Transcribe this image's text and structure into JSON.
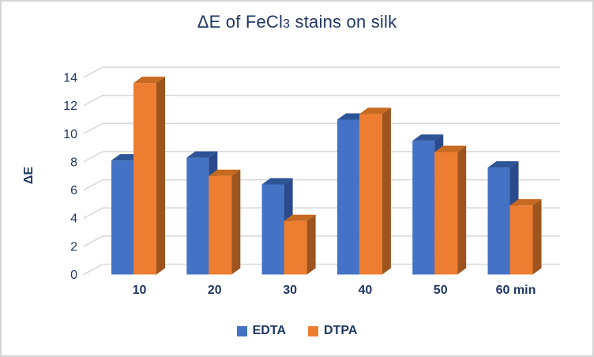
{
  "frame": {
    "background": "#ffffff",
    "border_color": "#d4d4d4"
  },
  "chart_data": {
    "type": "bar",
    "style": "3d-clustered-column",
    "title": "ΔE of FeCl3 stains on silk",
    "title_parts": {
      "pre": "ΔE of FeCl",
      "sub": "3",
      "post": " stains on silk"
    },
    "xlabel": "",
    "ylabel": "ΔE",
    "categories": [
      "10",
      "20",
      "30",
      "40",
      "50",
      "60 min"
    ],
    "series": [
      {
        "name": "EDTA",
        "values": [
          8.1,
          8.3,
          6.4,
          11.0,
          9.5,
          7.6
        ],
        "color": "#4472C4",
        "color_top": "#2E5597",
        "color_side": "#2A4A8C"
      },
      {
        "name": "DTPA",
        "values": [
          13.6,
          7.0,
          3.8,
          11.4,
          8.7,
          4.9
        ],
        "color": "#ED7D31",
        "color_top": "#C76A21",
        "color_side": "#9E541E"
      }
    ],
    "ylim": [
      0,
      14
    ],
    "ytick_step": 2,
    "ytick_labels": [
      "0",
      "2",
      "4",
      "6",
      "8",
      "10",
      "12",
      "14"
    ],
    "grid": true,
    "gridline_color": "#D9D9D9",
    "text_color": "#1F3864",
    "legend": {
      "position": "bottom",
      "entries": [
        "EDTA",
        "DTPA"
      ]
    }
  }
}
